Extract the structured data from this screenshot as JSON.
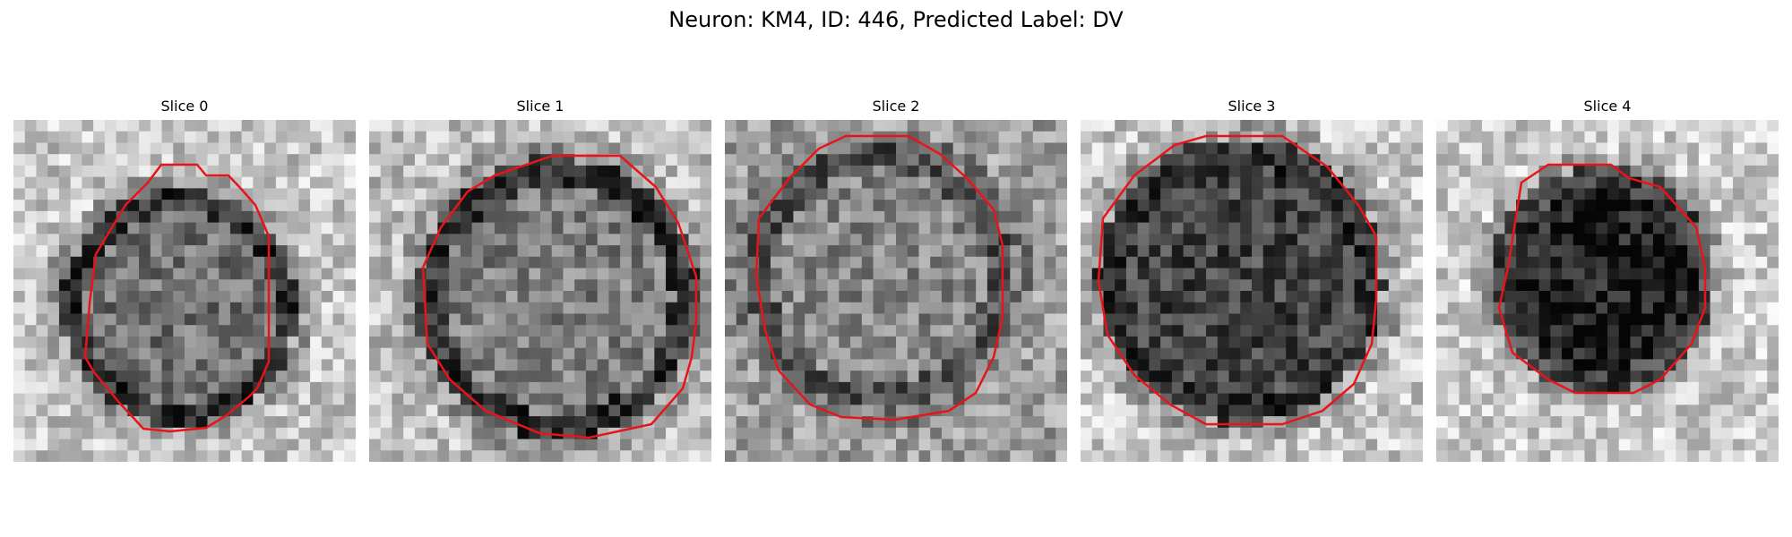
{
  "figure": {
    "title": "Neuron: KM4, ID: 446, Predicted Label: DV"
  },
  "colors": {
    "contour": "#e8141a",
    "background": "#ffffff"
  },
  "panels": [
    {
      "title": "Slice 0",
      "image": "grayscale-em-patch",
      "overlay": "red-outline"
    },
    {
      "title": "Slice 1",
      "image": "grayscale-em-patch",
      "overlay": "red-outline"
    },
    {
      "title": "Slice 2",
      "image": "grayscale-em-patch",
      "overlay": "red-outline"
    },
    {
      "title": "Slice 3",
      "image": "grayscale-em-patch",
      "overlay": "red-outline"
    },
    {
      "title": "Slice 4",
      "image": "grayscale-em-patch",
      "overlay": "red-outline"
    }
  ]
}
